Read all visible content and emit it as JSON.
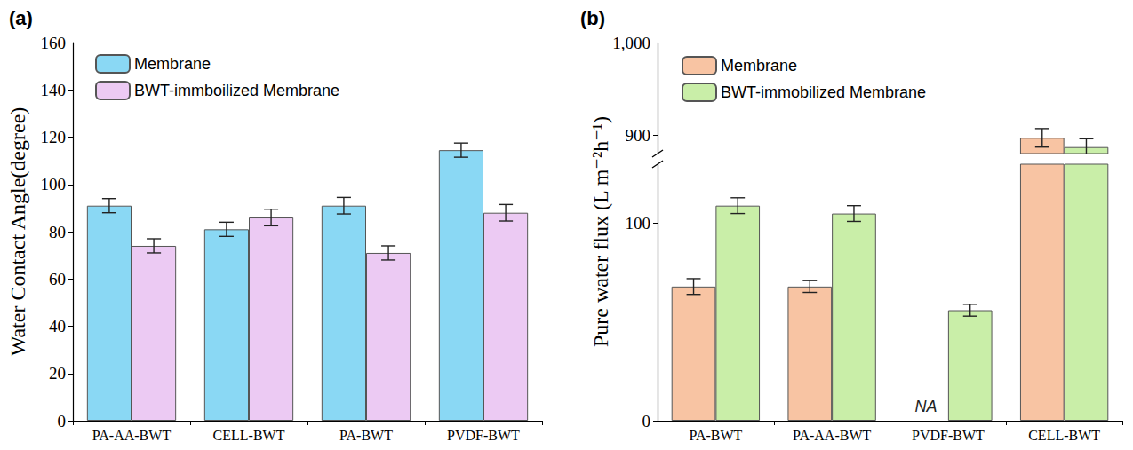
{
  "chart_data": [
    {
      "type": "bar",
      "title": "(a)",
      "y_label": "Water Contact Angle(degree)",
      "categories": [
        "PA-AA-BWT",
        "CELL-BWT",
        "PA-BWT",
        "PVDF-BWT"
      ],
      "series": [
        {
          "name": "Membrane",
          "color": "#8ad8f4",
          "values": [
            91,
            81,
            91,
            114.5
          ],
          "errors": [
            3,
            3,
            3.5,
            3
          ]
        },
        {
          "name": "BWT-immboilized Membrane",
          "color": "#eccaf3",
          "values": [
            74,
            86,
            71,
            88
          ],
          "errors": [
            3,
            3.5,
            3,
            3.5
          ]
        }
      ],
      "ylim": [
        0,
        160
      ],
      "yticks": [
        0,
        20,
        40,
        60,
        80,
        100,
        120,
        140,
        160
      ],
      "legend": "upper left",
      "grid": false
    },
    {
      "type": "bar",
      "title": "(b)",
      "y_label": "Pure water flux (L m⁻²h⁻¹)",
      "categories": [
        "PA-BWT",
        "PA-AA-BWT",
        "PVDF-BWT",
        "CELL-BWT"
      ],
      "series": [
        {
          "name": "Membrane",
          "color": "#f8c4a3",
          "values": [
            68,
            68,
            null,
            897
          ],
          "errors": [
            4,
            3,
            null,
            10
          ]
        },
        {
          "name": "BWT-immobilized Membrane",
          "color": "#c9eea8",
          "values": [
            109,
            105,
            56,
            887
          ],
          "errors": [
            4,
            4,
            3,
            9
          ]
        }
      ],
      "ylim": [
        0,
        1000
      ],
      "yticks": [
        0,
        100,
        900,
        1000
      ],
      "y_break": [
        130,
        880
      ],
      "annotations": [
        {
          "text": "NA",
          "category": "PVDF-BWT",
          "series": "Membrane"
        }
      ],
      "legend": "upper left",
      "grid": false
    }
  ]
}
